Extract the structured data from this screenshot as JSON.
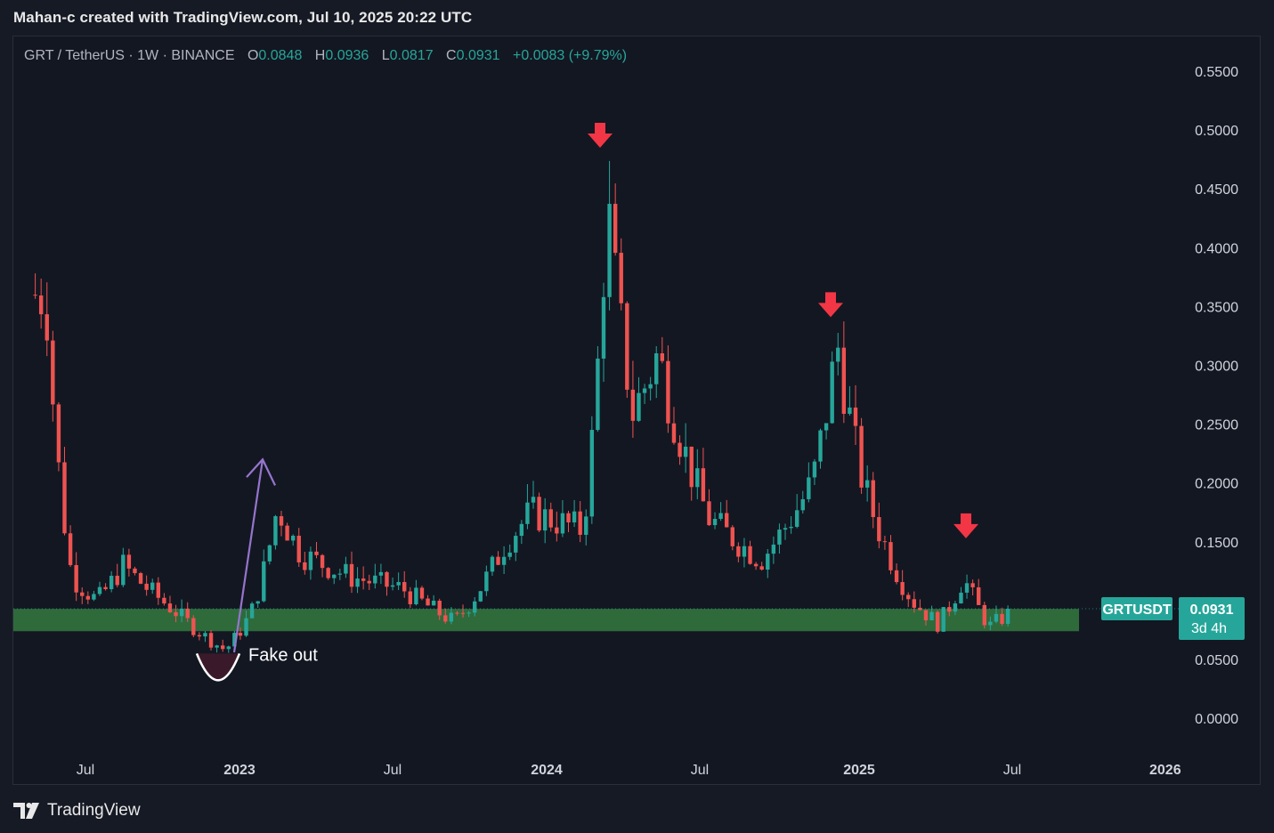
{
  "header": {
    "text": "Mahan-c created with TradingView.com, Jul 10, 2025 20:22 UTC"
  },
  "legend": {
    "symbol": "GRT / TetherUS · 1W · BINANCE",
    "o_label": "O",
    "o_value": "0.0848",
    "h_label": "H",
    "h_value": "0.0936",
    "l_label": "L",
    "l_value": "0.0817",
    "c_label": "C",
    "c_value": "0.0931",
    "change": "+0.0083 (+9.79%)"
  },
  "footer": {
    "brand": "TradingView"
  },
  "colors": {
    "up": "#26a69a",
    "down": "#ef5350",
    "background": "#131722",
    "support_zone": "#2f6a3b",
    "arrow": "#f23645",
    "purple_arrow": "#9575cd"
  },
  "chart_data": {
    "type": "candlestick",
    "symbol": "GRTUSDT",
    "interval": "1W",
    "ylim": [
      -0.02,
      0.58
    ],
    "y_ticks": [
      "0.5500",
      "0.5000",
      "0.4500",
      "0.4000",
      "0.3500",
      "0.3000",
      "0.2500",
      "0.2000",
      "0.1500",
      "0.0500",
      "0.0000"
    ],
    "x_ticks": [
      "Jul",
      "2023",
      "Jul",
      "2024",
      "Jul",
      "2025",
      "Jul",
      "2026"
    ],
    "grid": false,
    "price_label": {
      "name": "GRTUSDT",
      "value": "0.0931",
      "countdown": "3d 4h"
    },
    "support_zone": {
      "low": 0.074,
      "high": 0.093
    },
    "annotations": {
      "fake_out": "Fake out",
      "sell_arrows_at_peaks": [
        "2024-03",
        "2024-12",
        "2025-05"
      ]
    },
    "price_path_keypoints": [
      {
        "date": "2022-05",
        "close": 0.36
      },
      {
        "date": "2022-06",
        "close": 0.12
      },
      {
        "date": "2022-07",
        "close": 0.1
      },
      {
        "date": "2022-08",
        "close": 0.13
      },
      {
        "date": "2022-10",
        "close": 0.092
      },
      {
        "date": "2022-12",
        "close": 0.058
      },
      {
        "date": "2023-01",
        "close": 0.09
      },
      {
        "date": "2023-02",
        "close": 0.18
      },
      {
        "date": "2023-03",
        "close": 0.14
      },
      {
        "date": "2023-05",
        "close": 0.12
      },
      {
        "date": "2023-07",
        "close": 0.11
      },
      {
        "date": "2023-09",
        "close": 0.082
      },
      {
        "date": "2023-11",
        "close": 0.15
      },
      {
        "date": "2023-12",
        "close": 0.175
      },
      {
        "date": "2024-02",
        "close": 0.16
      },
      {
        "date": "2024-03",
        "close": 0.44
      },
      {
        "date": "2024-04",
        "close": 0.26
      },
      {
        "date": "2024-05",
        "close": 0.31
      },
      {
        "date": "2024-07",
        "close": 0.17
      },
      {
        "date": "2024-09",
        "close": 0.135
      },
      {
        "date": "2024-11",
        "close": 0.2
      },
      {
        "date": "2024-12",
        "close": 0.32
      },
      {
        "date": "2025-01",
        "close": 0.2
      },
      {
        "date": "2025-03",
        "close": 0.1
      },
      {
        "date": "2025-04",
        "close": 0.08
      },
      {
        "date": "2025-05",
        "close": 0.12
      },
      {
        "date": "2025-06",
        "close": 0.078
      },
      {
        "date": "2025-07",
        "close": 0.0931
      }
    ]
  }
}
